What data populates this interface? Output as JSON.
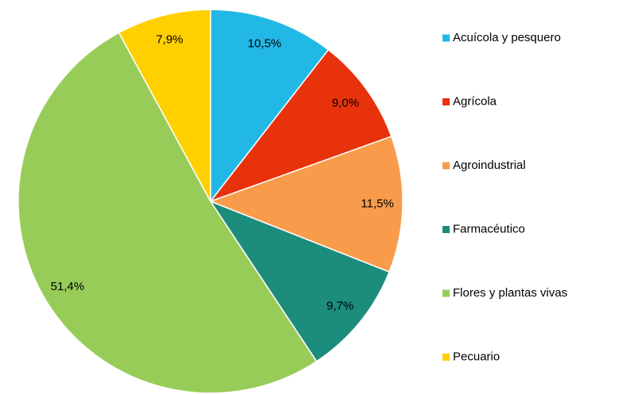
{
  "chart_data": {
    "type": "pie",
    "categories": [
      "Acuícola y pesquero",
      "Agrícola",
      "Agroindustrial",
      "Farmacéutico",
      "Flores y plantas vivas",
      "Pecuario"
    ],
    "values": [
      10.5,
      9.0,
      11.5,
      9.7,
      51.4,
      7.9
    ],
    "value_labels": [
      "10,5%",
      "9,0%",
      "11,5%",
      "9,7%",
      "51,4%",
      "7,9%"
    ],
    "colors": [
      "#22b8e6",
      "#e8320c",
      "#f89c4c",
      "#1c8c7c",
      "#98cc58",
      "#ffd000"
    ],
    "legend": "right"
  }
}
